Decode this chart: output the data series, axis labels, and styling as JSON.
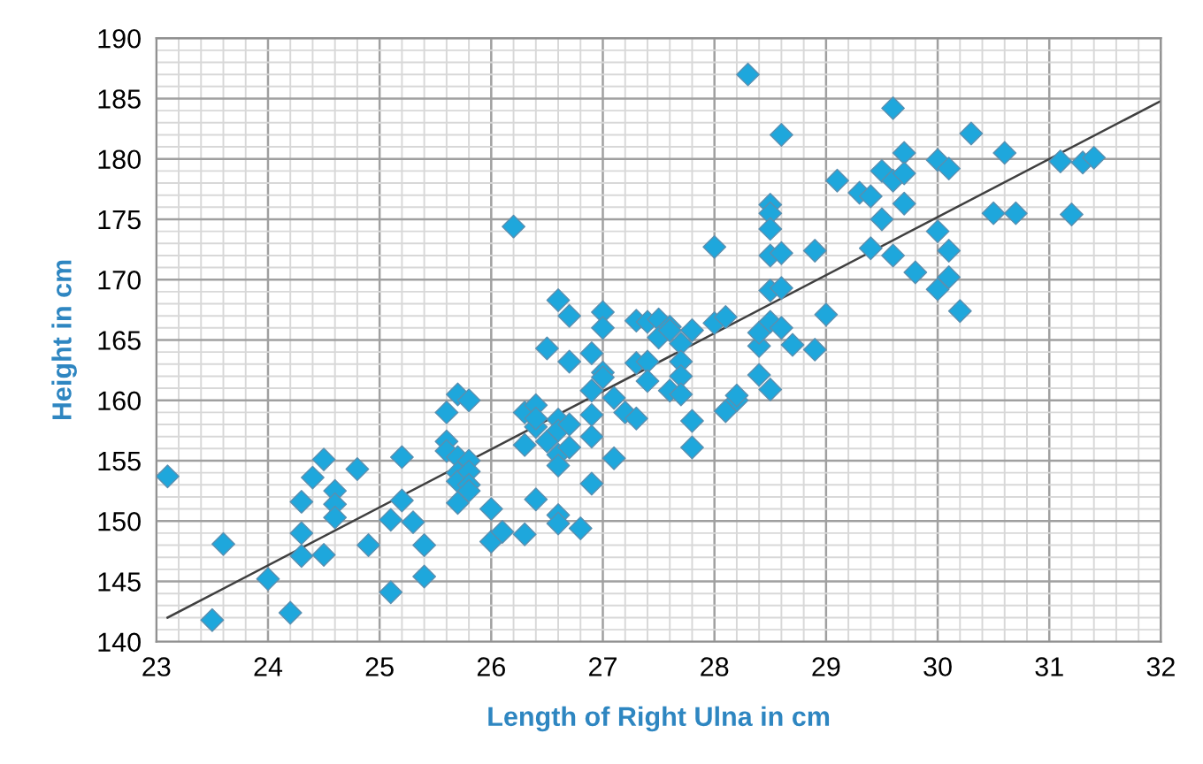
{
  "chart_data": {
    "type": "scatter",
    "xlabel": "Length of Right Ulna in cm",
    "ylabel": "Height in cm",
    "xlim": [
      23,
      32
    ],
    "ylim": [
      140,
      190
    ],
    "xticks": [
      23,
      24,
      25,
      26,
      27,
      28,
      29,
      30,
      31,
      32
    ],
    "yticks": [
      140,
      145,
      150,
      155,
      160,
      165,
      170,
      175,
      180,
      185,
      190
    ],
    "grid": true,
    "marker": "diamond",
    "series": [
      {
        "color": "#1ea7dc",
        "x": [
          23.1,
          23.6,
          23.5,
          24.0,
          24.2,
          24.3,
          24.3,
          24.3,
          24.4,
          24.5,
          24.5,
          24.6,
          24.6,
          24.6,
          24.8,
          24.9,
          25.1,
          25.1,
          25.2,
          25.2,
          25.3,
          25.4,
          25.4,
          25.6,
          25.6,
          25.6,
          25.7,
          25.7,
          25.7,
          25.7,
          25.7,
          25.8,
          25.8,
          25.8,
          25.8,
          25.8,
          26.0,
          26.0,
          26.1,
          26.2,
          26.3,
          26.3,
          26.3,
          26.4,
          26.4,
          26.4,
          26.4,
          26.5,
          26.5,
          26.6,
          26.6,
          26.6,
          26.6,
          26.6,
          26.6,
          26.6,
          26.7,
          26.7,
          26.7,
          26.7,
          26.8,
          26.9,
          26.9,
          26.9,
          26.9,
          26.9,
          27.0,
          27.0,
          27.0,
          27.0,
          27.1,
          27.1,
          27.2,
          27.3,
          27.3,
          27.3,
          27.4,
          27.4,
          27.4,
          27.5,
          27.5,
          27.6,
          27.6,
          27.6,
          27.7,
          27.7,
          27.7,
          27.7,
          27.8,
          27.8,
          27.8,
          28.0,
          28.0,
          28.1,
          28.1,
          28.2,
          28.2,
          28.3,
          28.4,
          28.4,
          28.4,
          28.5,
          28.5,
          28.5,
          28.5,
          28.5,
          28.5,
          28.5,
          28.6,
          28.6,
          28.6,
          28.6,
          28.7,
          28.9,
          28.9,
          29.0,
          29.1,
          29.3,
          29.4,
          29.4,
          29.5,
          29.5,
          29.6,
          29.6,
          29.6,
          29.7,
          29.7,
          29.7,
          29.8,
          30.0,
          30.0,
          30.0,
          30.1,
          30.1,
          30.1,
          30.2,
          30.3,
          30.5,
          30.6,
          30.7,
          31.1,
          31.2,
          31.3,
          31.4
        ],
        "values": [
          153.7,
          148.1,
          141.8,
          145.2,
          142.4,
          147.1,
          149.0,
          151.6,
          153.6,
          155.1,
          147.2,
          152.5,
          151.4,
          150.3,
          154.3,
          148.0,
          150.1,
          144.1,
          155.3,
          151.7,
          149.9,
          148.0,
          145.4,
          156.6,
          155.8,
          159.0,
          160.5,
          155.3,
          154.0,
          153.3,
          151.5,
          160.0,
          155.0,
          154.1,
          153.0,
          152.5,
          151.0,
          148.3,
          149.1,
          174.4,
          159.0,
          156.3,
          148.9,
          159.6,
          157.8,
          151.8,
          158.5,
          156.6,
          164.3,
          168.3,
          158.4,
          157.5,
          155.5,
          154.6,
          150.5,
          149.8,
          167.0,
          163.2,
          158.0,
          156.1,
          149.4,
          163.9,
          160.8,
          158.8,
          157.0,
          153.1,
          167.3,
          166.0,
          162.3,
          161.9,
          160.2,
          155.2,
          159.0,
          166.6,
          163.1,
          158.5,
          166.5,
          163.2,
          161.6,
          166.7,
          165.2,
          166.1,
          165.8,
          160.8,
          164.7,
          163.2,
          162.0,
          160.5,
          158.3,
          156.1,
          165.8,
          172.7,
          166.4,
          166.9,
          159.1,
          160.0,
          160.4,
          187.0,
          162.1,
          164.5,
          165.6,
          176.2,
          175.5,
          174.2,
          172.0,
          169.1,
          166.5,
          160.9,
          182.0,
          172.2,
          169.3,
          166.0,
          164.6,
          172.4,
          164.2,
          167.1,
          178.2,
          177.2,
          172.6,
          176.9,
          179.0,
          175.0,
          184.2,
          178.2,
          172.0,
          180.5,
          178.8,
          176.3,
          170.6,
          179.9,
          174.0,
          169.2,
          179.2,
          172.4,
          170.2,
          167.4,
          182.1,
          175.5,
          180.5,
          175.5,
          179.8,
          175.4,
          179.7,
          180.1
        ]
      },
      {
        "type": "line",
        "color": "#404040",
        "marker": "none",
        "x": [
          23.1,
          32
        ],
        "values": [
          142.0,
          184.8
        ]
      }
    ]
  }
}
